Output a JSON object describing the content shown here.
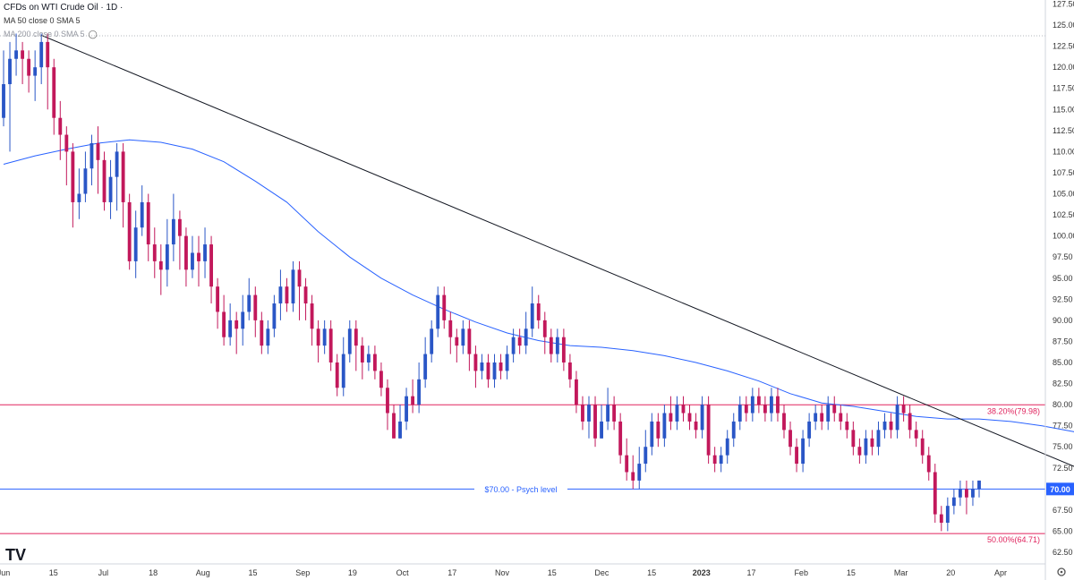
{
  "header": {
    "title": "CFDs on WTI Crude Oil · 1D ·",
    "ma50": "MA 50 close 0 SMA 5",
    "ma200": "MA 200 close 0 SMA 5"
  },
  "chart_data": {
    "type": "candlestick",
    "x_tick_labels": [
      "Jun",
      "15",
      "Jul",
      "18",
      "Aug",
      "15",
      "Sep",
      "19",
      "Oct",
      "17",
      "Nov",
      "15",
      "Dec",
      "15",
      "2023",
      "17",
      "Feb",
      "15",
      "Mar",
      "20",
      "Apr"
    ],
    "y_ticks": [
      127.5,
      125.0,
      122.5,
      120.0,
      117.5,
      115.0,
      112.5,
      110.0,
      107.5,
      105.0,
      102.5,
      100.0,
      97.5,
      95.0,
      92.5,
      90.0,
      87.5,
      85.0,
      82.5,
      80.0,
      77.5,
      75.0,
      72.5,
      70.0,
      67.5,
      65.0,
      62.5
    ],
    "ylim": [
      61.5,
      127.5
    ],
    "levels": [
      {
        "label": "38.20%(79.98)",
        "value": 79.98,
        "color": "#e0245e"
      },
      {
        "label": "$70.00 - Psych level",
        "value": 70.0,
        "color": "#2962ff",
        "price_tag": "70.00"
      },
      {
        "label": "50.00%(64.71)",
        "value": 64.71,
        "color": "#e0245e"
      }
    ],
    "trendline": {
      "start": {
        "index": 6,
        "value": 123.8
      },
      "end": {
        "index": 172,
        "value": 70.2
      }
    },
    "ma_line": [
      [
        0,
        108.5
      ],
      [
        5,
        109.5
      ],
      [
        10,
        110.3
      ],
      [
        15,
        111.0
      ],
      [
        20,
        111.4
      ],
      [
        25,
        111.1
      ],
      [
        30,
        110.3
      ],
      [
        35,
        108.8
      ],
      [
        40,
        106.5
      ],
      [
        45,
        104.0
      ],
      [
        50,
        100.5
      ],
      [
        55,
        97.5
      ],
      [
        60,
        95.0
      ],
      [
        65,
        93.0
      ],
      [
        70,
        91.3
      ],
      [
        75,
        89.8
      ],
      [
        80,
        88.5
      ],
      [
        85,
        87.6
      ],
      [
        90,
        87.0
      ],
      [
        95,
        86.8
      ],
      [
        100,
        86.4
      ],
      [
        105,
        85.8
      ],
      [
        110,
        85.0
      ],
      [
        115,
        84.0
      ],
      [
        120,
        82.8
      ],
      [
        125,
        81.3
      ],
      [
        130,
        80.2
      ],
      [
        135,
        79.8
      ],
      [
        140,
        79.2
      ],
      [
        145,
        78.6
      ],
      [
        150,
        78.3
      ],
      [
        155,
        78.3
      ],
      [
        160,
        78.0
      ],
      [
        165,
        77.5
      ],
      [
        170,
        76.8
      ],
      [
        172,
        76.4
      ]
    ],
    "candles": [
      [
        114,
        118,
        122,
        113
      ],
      [
        118,
        121,
        123,
        110
      ],
      [
        121,
        122,
        124,
        119
      ],
      [
        122,
        121,
        123,
        118
      ],
      [
        121,
        119,
        122,
        117
      ],
      [
        119,
        120,
        122,
        116
      ],
      [
        120,
        123,
        124,
        118
      ],
      [
        123,
        120,
        124,
        115
      ],
      [
        120,
        114,
        121,
        112
      ],
      [
        114,
        112,
        116,
        109
      ],
      [
        112,
        110,
        113,
        106
      ],
      [
        110,
        104,
        111,
        101
      ],
      [
        104,
        105,
        108,
        102
      ],
      [
        105,
        108,
        110,
        104
      ],
      [
        108,
        111,
        112,
        106
      ],
      [
        111,
        109,
        113,
        105
      ],
      [
        109,
        104,
        110,
        103
      ],
      [
        104,
        107,
        109,
        102
      ],
      [
        107,
        110,
        111,
        103
      ],
      [
        110,
        104,
        111,
        101
      ],
      [
        104,
        97,
        105,
        96
      ],
      [
        97,
        101,
        103,
        95
      ],
      [
        101,
        104,
        106,
        100
      ],
      [
        104,
        99,
        105,
        97
      ],
      [
        99,
        97,
        101,
        95
      ],
      [
        97,
        96,
        99,
        93
      ],
      [
        96,
        99,
        102,
        94
      ],
      [
        99,
        102,
        105,
        97
      ],
      [
        102,
        100,
        103,
        96
      ],
      [
        100,
        96,
        101,
        94
      ],
      [
        96,
        98,
        100,
        95
      ],
      [
        98,
        97,
        100,
        94
      ],
      [
        97,
        99,
        101,
        95
      ],
      [
        99,
        94,
        100,
        92
      ],
      [
        94,
        91,
        95,
        89
      ],
      [
        91,
        88,
        93,
        87
      ],
      [
        88,
        90,
        92,
        87
      ],
      [
        90,
        89,
        91,
        86
      ],
      [
        89,
        91,
        93,
        87
      ],
      [
        91,
        93,
        95,
        90
      ],
      [
        93,
        90,
        94,
        88
      ],
      [
        90,
        87,
        91,
        86
      ],
      [
        87,
        89,
        90,
        86
      ],
      [
        89,
        92,
        93,
        88
      ],
      [
        92,
        94,
        96,
        90
      ],
      [
        94,
        92,
        95,
        91
      ],
      [
        92,
        96,
        97,
        91
      ],
      [
        96,
        94,
        97,
        90
      ],
      [
        94,
        92,
        95,
        90
      ],
      [
        92,
        89,
        93,
        87
      ],
      [
        89,
        87,
        90,
        85
      ],
      [
        87,
        89,
        90,
        86
      ],
      [
        89,
        85,
        90,
        84
      ],
      [
        85,
        82,
        86,
        81
      ],
      [
        82,
        86,
        88,
        81
      ],
      [
        86,
        89,
        90,
        85
      ],
      [
        89,
        87,
        90,
        84
      ],
      [
        87,
        85,
        88,
        83
      ],
      [
        85,
        86,
        87,
        84
      ],
      [
        86,
        84,
        87,
        83
      ],
      [
        84,
        82,
        85,
        81
      ],
      [
        82,
        79,
        83,
        77
      ],
      [
        79,
        76,
        80,
        76
      ],
      [
        76,
        78,
        80,
        76
      ],
      [
        78,
        81,
        82,
        77
      ],
      [
        81,
        80,
        83,
        79
      ],
      [
        80,
        83,
        85,
        79
      ],
      [
        83,
        86,
        88,
        82
      ],
      [
        86,
        89,
        90,
        85
      ],
      [
        89,
        93,
        94,
        88
      ],
      [
        93,
        90,
        94,
        89
      ],
      [
        90,
        88,
        91,
        86
      ],
      [
        88,
        87,
        89,
        85
      ],
      [
        87,
        89,
        90,
        86
      ],
      [
        89,
        86,
        90,
        84
      ],
      [
        86,
        84,
        87,
        82
      ],
      [
        84,
        85,
        86,
        83
      ],
      [
        85,
        83,
        86,
        82
      ],
      [
        83,
        85,
        86,
        82
      ],
      [
        85,
        84,
        86,
        83
      ],
      [
        84,
        86,
        87,
        83
      ],
      [
        86,
        88,
        89,
        85
      ],
      [
        88,
        87,
        89,
        86
      ],
      [
        87,
        89,
        91,
        86
      ],
      [
        89,
        92,
        94,
        88
      ],
      [
        92,
        90,
        93,
        89
      ],
      [
        90,
        88,
        91,
        86
      ],
      [
        88,
        86,
        89,
        85
      ],
      [
        86,
        88,
        89,
        85
      ],
      [
        88,
        85,
        89,
        84
      ],
      [
        85,
        83,
        86,
        82
      ],
      [
        83,
        80,
        84,
        79
      ],
      [
        80,
        78,
        81,
        77
      ],
      [
        78,
        80,
        81,
        76
      ],
      [
        80,
        76,
        81,
        75
      ],
      [
        76,
        78,
        80,
        76
      ],
      [
        78,
        80,
        82,
        77
      ],
      [
        80,
        78,
        81,
        77
      ],
      [
        78,
        74,
        79,
        73
      ],
      [
        74,
        72,
        76,
        71
      ],
      [
        72,
        71,
        74,
        70
      ],
      [
        71,
        73,
        75,
        70
      ],
      [
        73,
        75,
        77,
        72
      ],
      [
        75,
        78,
        79,
        74
      ],
      [
        78,
        76,
        79,
        75
      ],
      [
        76,
        79,
        80,
        75
      ],
      [
        79,
        78,
        81,
        77
      ],
      [
        78,
        80,
        81,
        77
      ],
      [
        80,
        79,
        81,
        78
      ],
      [
        79,
        78,
        80,
        77
      ],
      [
        78,
        77,
        79,
        76
      ],
      [
        77,
        80,
        81,
        76
      ],
      [
        80,
        74,
        81,
        73
      ],
      [
        74,
        73,
        75,
        72
      ],
      [
        73,
        74,
        75,
        72
      ],
      [
        74,
        76,
        77,
        73
      ],
      [
        76,
        78,
        79,
        75
      ],
      [
        78,
        80,
        81,
        77
      ],
      [
        80,
        79,
        81,
        78
      ],
      [
        79,
        81,
        82,
        78
      ],
      [
        81,
        80,
        82,
        79
      ],
      [
        80,
        79,
        81,
        78
      ],
      [
        79,
        81,
        82,
        78
      ],
      [
        81,
        79,
        82,
        78
      ],
      [
        79,
        77,
        80,
        76
      ],
      [
        77,
        75,
        78,
        74
      ],
      [
        75,
        73,
        76,
        72
      ],
      [
        73,
        76,
        77,
        72
      ],
      [
        76,
        78,
        79,
        75
      ],
      [
        78,
        79,
        80,
        77
      ],
      [
        79,
        78,
        80,
        77
      ],
      [
        78,
        80,
        81,
        77
      ],
      [
        80,
        79,
        81,
        78
      ],
      [
        79,
        78,
        80,
        77
      ],
      [
        78,
        77,
        79,
        76
      ],
      [
        77,
        75,
        78,
        74
      ],
      [
        75,
        74,
        76,
        73
      ],
      [
        74,
        76,
        77,
        73
      ],
      [
        76,
        75,
        77,
        74
      ],
      [
        75,
        77,
        78,
        74
      ],
      [
        77,
        78,
        79,
        76
      ],
      [
        78,
        77,
        79,
        76
      ],
      [
        77,
        80,
        81,
        76
      ],
      [
        80,
        79,
        81,
        78
      ],
      [
        79,
        77,
        80,
        76
      ],
      [
        77,
        76,
        78,
        75
      ],
      [
        76,
        74,
        77,
        73
      ],
      [
        74,
        72,
        75,
        71
      ],
      [
        72,
        67,
        73,
        66
      ],
      [
        67,
        66,
        68,
        65
      ],
      [
        66,
        68,
        69,
        65
      ],
      [
        68,
        69,
        70,
        67
      ],
      [
        69,
        70,
        71,
        68
      ],
      [
        70,
        69,
        71,
        67
      ],
      [
        69,
        70,
        71,
        68
      ],
      [
        70,
        71,
        71,
        69
      ]
    ]
  }
}
